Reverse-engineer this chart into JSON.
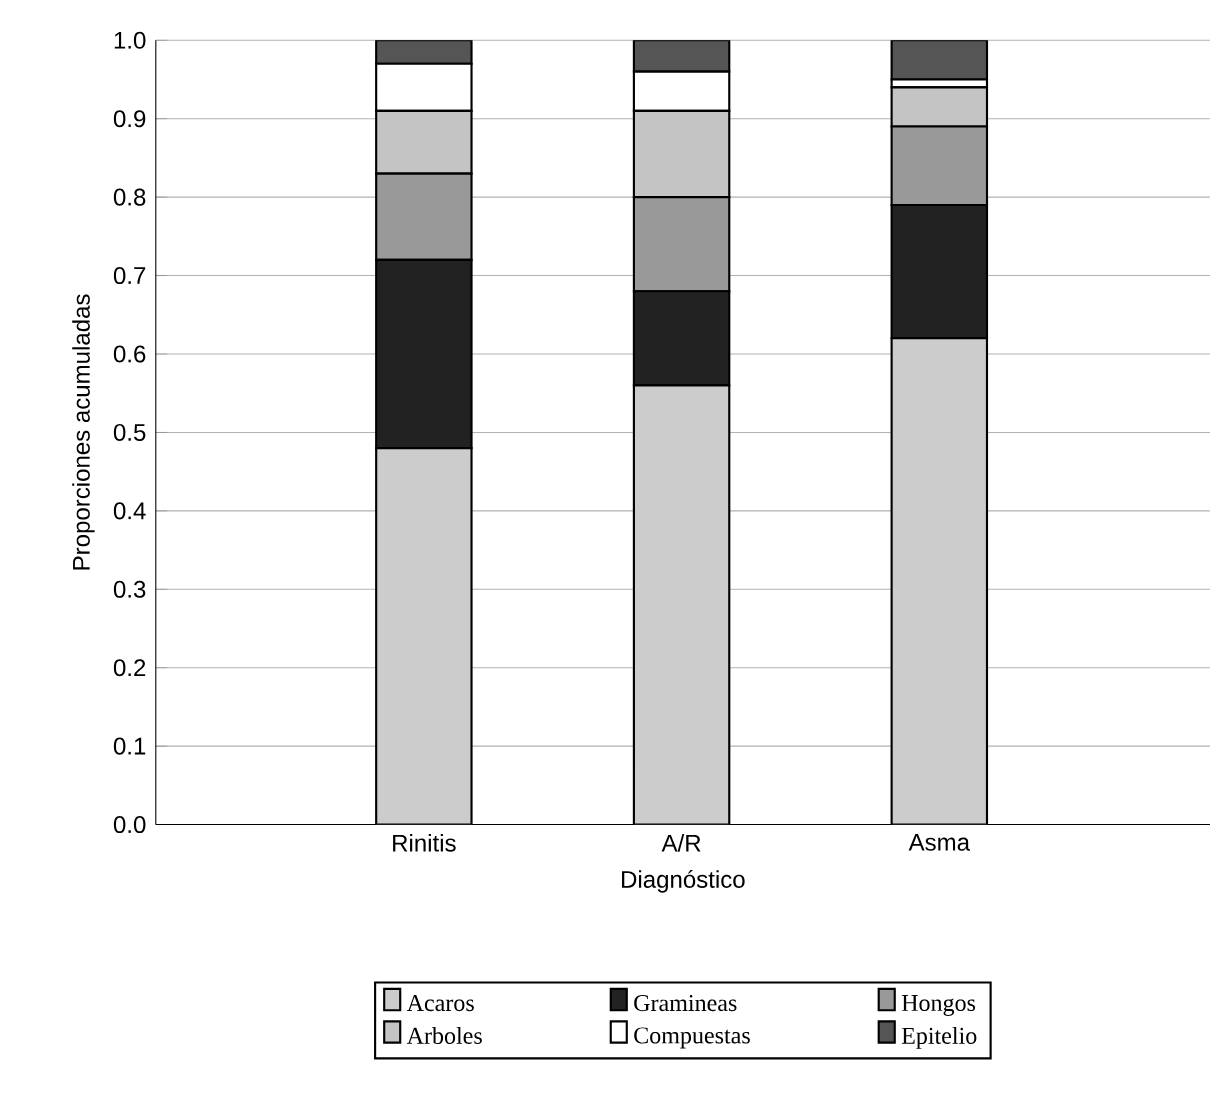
{
  "chart_data": {
    "type": "bar",
    "stacked": true,
    "xlabel": "Diagnóstico",
    "ylabel": "Proporciones acumuladas",
    "categories": [
      "Rinitis",
      "A/R",
      "Asma"
    ],
    "series": [
      {
        "name": "Acaros",
        "color": "#cccccc",
        "values": [
          0.48,
          0.56,
          0.62
        ]
      },
      {
        "name": "Gramineas",
        "color": "#222222",
        "values": [
          0.24,
          0.12,
          0.17
        ]
      },
      {
        "name": "Hongos",
        "color": "#999999",
        "values": [
          0.11,
          0.12,
          0.1
        ]
      },
      {
        "name": "Arboles",
        "color": "#c4c4c4",
        "values": [
          0.08,
          0.11,
          0.05
        ]
      },
      {
        "name": "Compuestas",
        "color": "#ffffff",
        "values": [
          0.06,
          0.05,
          0.01
        ]
      },
      {
        "name": "Epitelio",
        "color": "#555555",
        "values": [
          0.03,
          0.04,
          0.05
        ]
      }
    ],
    "ylim": [
      0,
      1
    ],
    "yticks": [
      {
        "value": 0,
        "label": "0.0"
      },
      0.1,
      0.2,
      0.3,
      0.4,
      0.5,
      0.6,
      0.7,
      0.8,
      0.9,
      {
        "value": 1,
        "label": "1.0"
      }
    ],
    "grid": "y",
    "legend": "bottom"
  }
}
